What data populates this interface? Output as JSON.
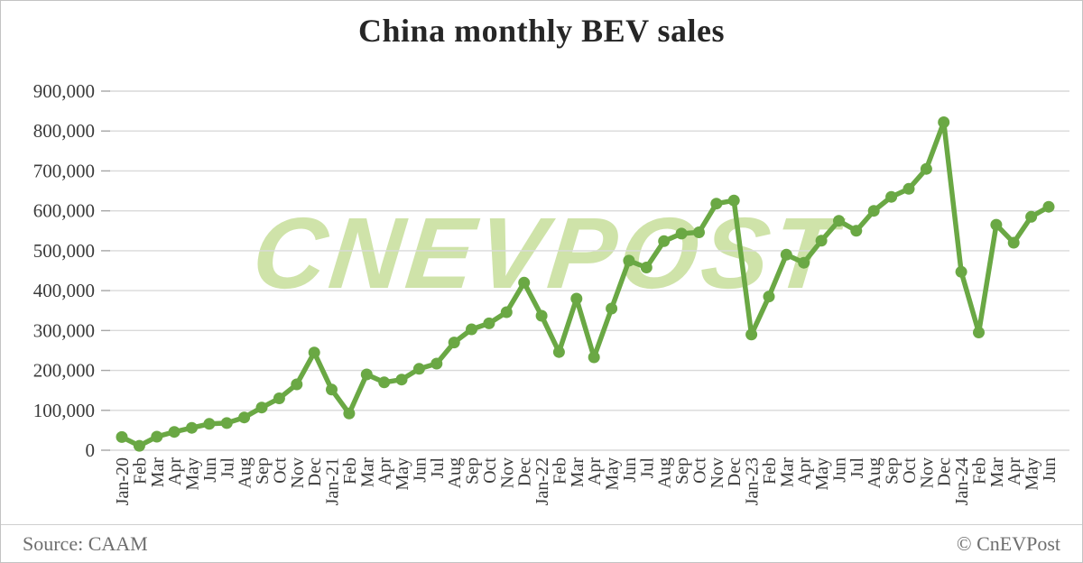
{
  "chart_data": {
    "type": "line",
    "title": "China monthly BEV sales",
    "categories": [
      "Jan-20",
      "Feb",
      "Mar",
      "Apr",
      "May",
      "Jun",
      "Jul",
      "Aug",
      "Sep",
      "Oct",
      "Nov",
      "Dec",
      "Jan-21",
      "Feb",
      "Mar",
      "Apr",
      "May",
      "Jun",
      "Jul",
      "Aug",
      "Sep",
      "Oct",
      "Nov",
      "Dec",
      "Jan-22",
      "Feb",
      "Mar",
      "Apr",
      "May",
      "Jun",
      "Jul",
      "Aug",
      "Sep",
      "Oct",
      "Nov",
      "Dec",
      "Jan-23",
      "Feb",
      "Mar",
      "Apr",
      "May",
      "Jun",
      "Jul",
      "Aug",
      "Sep",
      "Oct",
      "Nov",
      "Dec",
      "Jan-24",
      "Feb",
      "Mar",
      "Apr",
      "May",
      "Jun"
    ],
    "values": [
      33000,
      11000,
      34000,
      46000,
      56000,
      66000,
      68000,
      82000,
      107000,
      130000,
      165000,
      245000,
      152000,
      92000,
      190000,
      170000,
      177000,
      204000,
      217000,
      270000,
      303000,
      318000,
      346000,
      420000,
      337000,
      246000,
      380000,
      233000,
      355000,
      475000,
      458000,
      524000,
      543000,
      546000,
      618000,
      626000,
      290000,
      385000,
      490000,
      470000,
      525000,
      575000,
      550000,
      600000,
      635000,
      655000,
      705000,
      822000,
      447000,
      295000,
      565000,
      520000,
      585000,
      610000
    ],
    "xlabel": "",
    "ylabel": "",
    "ylim": [
      0,
      900000
    ],
    "ytick_step": 100000,
    "ytick_labels": [
      "0",
      "100,000",
      "200,000",
      "300,000",
      "400,000",
      "500,000",
      "600,000",
      "700,000",
      "800,000",
      "900,000"
    ],
    "grid": true,
    "legend": "none",
    "marker": "circle"
  },
  "watermark": {
    "text": "CNEVPOST"
  },
  "footer": {
    "source": "Source: CAAM",
    "copyright": "© CnEVPost"
  },
  "colors": {
    "line": "#6aa844",
    "watermark": "#cfe3a9",
    "grid": "#d9d9d9",
    "tick": "#a6a6a6",
    "title_text": "#262626",
    "axis_text": "#3a3a3a",
    "footer_text": "#6e6e6e",
    "border": "#c3c3c3"
  }
}
